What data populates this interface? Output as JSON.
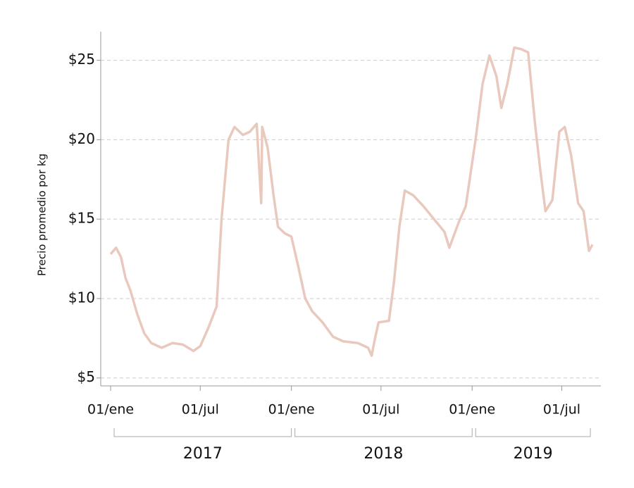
{
  "chart_data": {
    "type": "line",
    "y_label": "Precio promedio por kg",
    "x": [
      "2017-01-01",
      "2017-01-12",
      "2017-01-22",
      "2017-01-31",
      "2017-02-10",
      "2017-02-24",
      "2017-03-10",
      "2017-03-24",
      "2017-04-14",
      "2017-05-06",
      "2017-05-27",
      "2017-06-17",
      "2017-07-01",
      "2017-07-18",
      "2017-08-03",
      "2017-08-13",
      "2017-08-27",
      "2017-09-08",
      "2017-09-25",
      "2017-10-09",
      "2017-10-23",
      "2017-11-01",
      "2017-11-03",
      "2017-11-14",
      "2017-11-26",
      "2017-12-05",
      "2017-12-19",
      "2018-01-01",
      "2018-01-15",
      "2018-01-29",
      "2018-02-12",
      "2018-03-05",
      "2018-03-26",
      "2018-04-16",
      "2018-05-15",
      "2018-06-05",
      "2018-06-12",
      "2018-06-19",
      "2018-06-26",
      "2018-07-17",
      "2018-07-27",
      "2018-08-07",
      "2018-08-18",
      "2018-09-04",
      "2018-09-25",
      "2018-10-16",
      "2018-11-06",
      "2018-11-16",
      "2018-12-05",
      "2018-12-19",
      "2019-01-08",
      "2019-01-22",
      "2019-02-05",
      "2019-02-19",
      "2019-03-01",
      "2019-03-13",
      "2019-03-27",
      "2019-04-10",
      "2019-04-24",
      "2019-05-08",
      "2019-05-19",
      "2019-05-29",
      "2019-06-12",
      "2019-06-26",
      "2019-07-07",
      "2019-07-20",
      "2019-08-03",
      "2019-08-14",
      "2019-08-25",
      "2019-09-01"
    ],
    "series": [
      {
        "name": "Precio promedio por kg",
        "color": "#e9c9bd",
        "values": [
          12.8,
          13.2,
          12.6,
          11.3,
          10.5,
          9.0,
          7.8,
          7.2,
          6.9,
          7.2,
          7.1,
          6.7,
          7.0,
          8.2,
          9.5,
          15.0,
          20.0,
          20.8,
          20.3,
          20.5,
          21.0,
          16.0,
          20.8,
          19.5,
          16.5,
          14.5,
          14.1,
          13.9,
          12.0,
          10.0,
          9.2,
          8.5,
          7.6,
          7.3,
          7.2,
          6.9,
          6.4,
          7.5,
          8.5,
          8.6,
          11.0,
          14.5,
          16.8,
          16.5,
          15.8,
          15.0,
          14.2,
          13.2,
          14.8,
          15.8,
          20.0,
          23.5,
          25.3,
          24.0,
          22.0,
          23.5,
          25.8,
          25.7,
          25.5,
          21.0,
          18.0,
          15.5,
          16.2,
          20.5,
          20.8,
          19.0,
          16.0,
          15.5,
          13.0,
          13.4
        ]
      }
    ],
    "xlim": [
      "2016-12-12",
      "2019-09-18"
    ],
    "xticks": [
      {
        "value": "2017-01-01",
        "label": "01/ene"
      },
      {
        "value": "2017-07-01",
        "label": "01/jul"
      },
      {
        "value": "2018-01-01",
        "label": "01/ene"
      },
      {
        "value": "2018-07-01",
        "label": "01/jul"
      },
      {
        "value": "2019-01-01",
        "label": "01/ene"
      },
      {
        "value": "2019-07-01",
        "label": "01/jul"
      }
    ],
    "year_groups": [
      "2017",
      "2018",
      "2019"
    ],
    "ylim": [
      4.5,
      26.8
    ],
    "yticks": [
      {
        "value": 5,
        "label": "$5"
      },
      {
        "value": 10,
        "label": "$10"
      },
      {
        "value": 15,
        "label": "$15"
      },
      {
        "value": 20,
        "label": "$20"
      },
      {
        "value": 25,
        "label": "$25"
      }
    ],
    "grid": true
  }
}
